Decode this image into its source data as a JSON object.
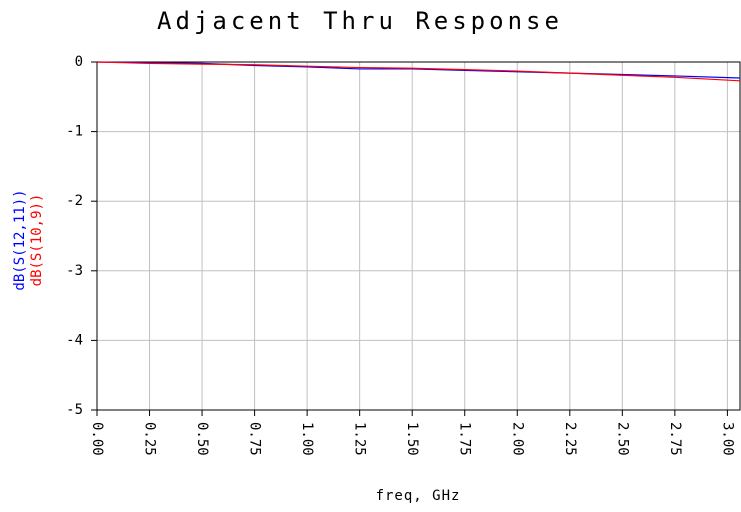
{
  "chart_data": {
    "type": "line",
    "title": "Adjacent Thru Response",
    "xlabel": "freq, GHz",
    "x": [
      0,
      0.25,
      0.5,
      0.75,
      1.0,
      1.25,
      1.5,
      1.75,
      2.0,
      2.25,
      2.5,
      2.75,
      3.06
    ],
    "series": [
      {
        "name": "dB(S(12,11))",
        "color": "#0000ff",
        "values": [
          0,
          -0.01,
          -0.02,
          -0.05,
          -0.07,
          -0.1,
          -0.1,
          -0.12,
          -0.14,
          -0.16,
          -0.18,
          -0.2,
          -0.23
        ]
      },
      {
        "name": "dB(S(10,9))",
        "color": "#ff0000",
        "values": [
          0,
          -0.02,
          -0.03,
          -0.04,
          -0.06,
          -0.08,
          -0.09,
          -0.11,
          -0.13,
          -0.16,
          -0.19,
          -0.22,
          -0.27
        ]
      }
    ],
    "xlim": [
      0,
      3.06
    ],
    "ylim": [
      -5,
      0
    ],
    "xticks": [
      {
        "value": 0,
        "label": "0.00"
      },
      {
        "value": 0.25,
        "label": "0.25"
      },
      {
        "value": 0.5,
        "label": "0.50"
      },
      {
        "value": 0.75,
        "label": "0.75"
      },
      {
        "value": 1,
        "label": "1.00"
      },
      {
        "value": 1.25,
        "label": "1.25"
      },
      {
        "value": 1.5,
        "label": "1.50"
      },
      {
        "value": 1.75,
        "label": "1.75"
      },
      {
        "value": 2,
        "label": "2.00"
      },
      {
        "value": 2.25,
        "label": "2.25"
      },
      {
        "value": 2.5,
        "label": "2.50"
      },
      {
        "value": 2.75,
        "label": "2.75"
      },
      {
        "value": 3,
        "label": "3.00"
      }
    ],
    "yticks": [
      0,
      -1,
      -2,
      -3,
      -4,
      -5
    ],
    "grid": true
  }
}
